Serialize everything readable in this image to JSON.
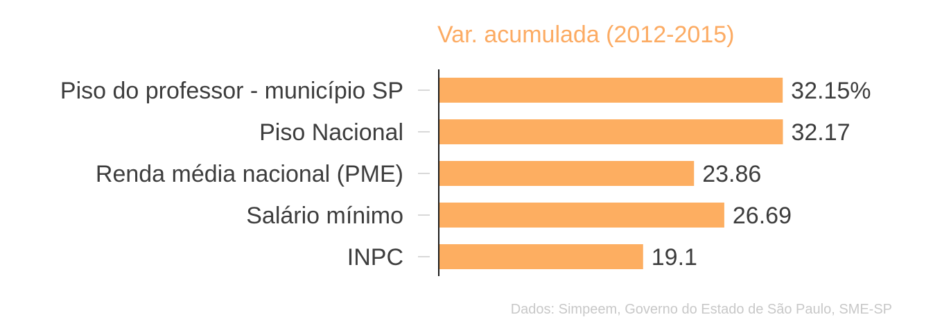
{
  "chart_data": {
    "type": "bar",
    "orientation": "horizontal",
    "title": "Var. acumulada (2012-2015)",
    "categories": [
      "Piso do professor - município SP",
      "Piso Nacional",
      "Renda média nacional (PME)",
      "Salário mínimo",
      "INPC"
    ],
    "values": [
      32.15,
      32.17,
      23.86,
      26.69,
      19.1
    ],
    "value_labels": [
      "32.15%",
      "32.17",
      "23.86",
      "26.69",
      "19.1"
    ],
    "xlim": [
      0,
      33.5
    ],
    "grid": false,
    "legend": "none"
  },
  "source": "Dados: Simpeem, Governo do Estado de São Paulo, SME-SP",
  "colors": {
    "bar": "#fdae61",
    "title": "#fcab63",
    "axis": "#1a1a1a",
    "tick": "#cccccc",
    "label": "#3d3d3d",
    "source": "#c8c8c8"
  }
}
